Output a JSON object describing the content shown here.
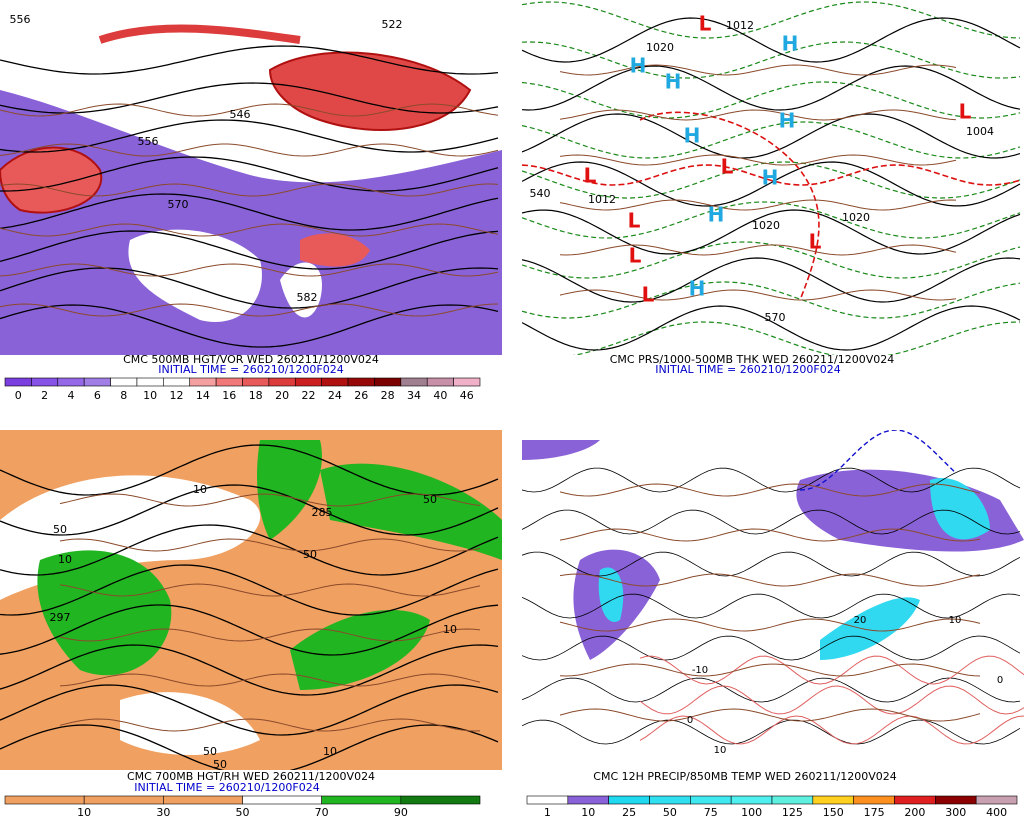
{
  "panels": [
    {
      "caption": "CMC 500MB HGT/VOR WED 260211/1200V024",
      "initial_time": "INITIAL TIME = 260210/1200F024",
      "colorbar": {
        "labels": [
          "0",
          "2",
          "4",
          "6",
          "8",
          "10",
          "12",
          "14",
          "16",
          "18",
          "20",
          "22",
          "24",
          "26",
          "28",
          "34",
          "40",
          "46"
        ],
        "colors": [
          "#7b3fe0",
          "#8752e6",
          "#9468e6",
          "#a17ee6",
          "#ffffff",
          "#ffffff",
          "#ffffff",
          "#f5a0a0",
          "#f07878",
          "#e85a5a",
          "#dd3c3c",
          "#cc2020",
          "#b01010",
          "#960808",
          "#7a0000",
          "#a08090",
          "#c890a8",
          "#f0b0c8"
        ]
      },
      "map_labels": [
        "556",
        "546",
        "556",
        "570",
        "582",
        "522"
      ]
    },
    {
      "caption": "CMC PRS/1000-500MB THK WED 260211/1200V024",
      "initial_time": "INITIAL TIME = 260210/1200F024",
      "map_labels": [
        "L",
        "L",
        "L",
        "L",
        "L",
        "L",
        "L",
        "L",
        "H",
        "H",
        "H",
        "H",
        "H",
        "H",
        "H",
        "H",
        "1012",
        "1020",
        "1004",
        "1020",
        "1012",
        "1020",
        "570",
        "540"
      ]
    },
    {
      "caption": "CMC 700MB HGT/RH WED 260211/1200V024",
      "initial_time": "INITIAL TIME = 260210/1200F024",
      "colorbar": {
        "labels": [
          "10",
          "30",
          "50",
          "70",
          "90"
        ],
        "colors": [
          "#f0a060",
          "#f0a060",
          "#f0a060",
          "#ffffff",
          "#22b522",
          "#117a11"
        ]
      },
      "map_labels": [
        "50",
        "10",
        "285",
        "10",
        "50",
        "297",
        "50",
        "10",
        "50",
        "10",
        "50"
      ]
    },
    {
      "caption": "CMC 12H PRECIP/850MB TEMP WED 260211/1200V024",
      "colorbar": {
        "labels": [
          "1",
          "10",
          "25",
          "50",
          "75",
          "100",
          "125",
          "150",
          "175",
          "200",
          "300",
          "400"
        ],
        "colors": [
          "#ffffff",
          "#8a62d8",
          "#20d8f0",
          "#30e0f0",
          "#40e8f0",
          "#50f0f0",
          "#60f0e0",
          "#ffd020",
          "#ff9020",
          "#e02020",
          "#8b0000",
          "#c8a0b0"
        ]
      },
      "map_labels": [
        "0",
        "10",
        "20",
        "-10",
        "0",
        "10"
      ]
    }
  ]
}
